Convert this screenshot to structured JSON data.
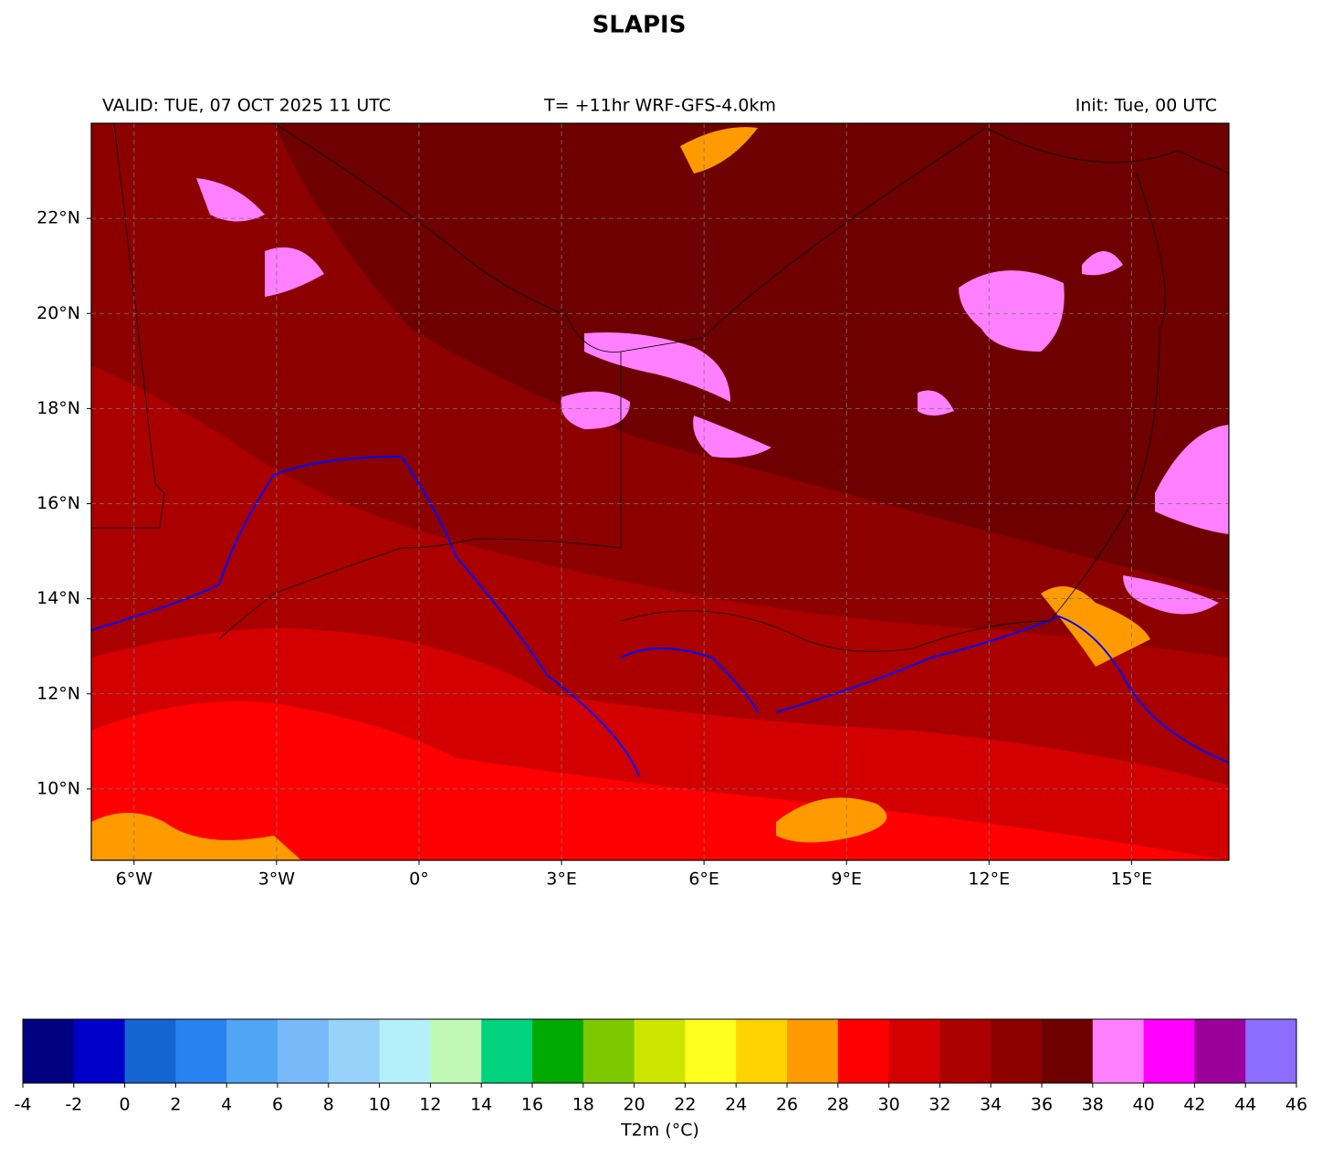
{
  "title": "SLAPIS",
  "header": {
    "left": "VALID: TUE, 07 OCT 2025 11 UTC",
    "center": "T= +11hr WRF-GFS-4.0km",
    "right": "Init: Tue, 00 UTC"
  },
  "map": {
    "xlim": [
      -6.9,
      17.05
    ],
    "ylim": [
      8.5,
      24
    ],
    "grid": true,
    "xticks": [
      {
        "value": -6,
        "label": "6°W"
      },
      {
        "value": -3,
        "label": "3°W"
      },
      {
        "value": 0,
        "label": "0°"
      },
      {
        "value": 3,
        "label": "3°E"
      },
      {
        "value": 6,
        "label": "6°E"
      },
      {
        "value": 9,
        "label": "9°E"
      },
      {
        "value": 12,
        "label": "12°E"
      },
      {
        "value": 15,
        "label": "15°E"
      }
    ],
    "yticks": [
      {
        "value": 10,
        "label": "10°N"
      },
      {
        "value": 12,
        "label": "12°N"
      },
      {
        "value": 14,
        "label": "14°N"
      },
      {
        "value": 16,
        "label": "16°N"
      },
      {
        "value": 18,
        "label": "18°N"
      },
      {
        "value": 20,
        "label": "20°N"
      },
      {
        "value": 22,
        "label": "22°N"
      }
    ]
  },
  "colorbar": {
    "label": "T2m (°C)",
    "boundaries": [
      -4,
      -2,
      0,
      2,
      4,
      6,
      8,
      10,
      12,
      14,
      16,
      18,
      20,
      22,
      24,
      26,
      28,
      30,
      32,
      34,
      36,
      38,
      40,
      42,
      44,
      46
    ],
    "colors": [
      "#000080",
      "#0000c8",
      "#1464d2",
      "#2882f0",
      "#50a5f5",
      "#78b9fa",
      "#96d2fa",
      "#b4f0fa",
      "#c0f9b4",
      "#00d27d",
      "#00aa00",
      "#7dc800",
      "#cde600",
      "#ffff1e",
      "#ffd200",
      "#ff9b00",
      "#ff0000",
      "#d20000",
      "#aa0000",
      "#8c0000",
      "#6e0000",
      "#ff80ff",
      "#ff00ff",
      "#9b009b",
      "#8c6eff"
    ]
  }
}
